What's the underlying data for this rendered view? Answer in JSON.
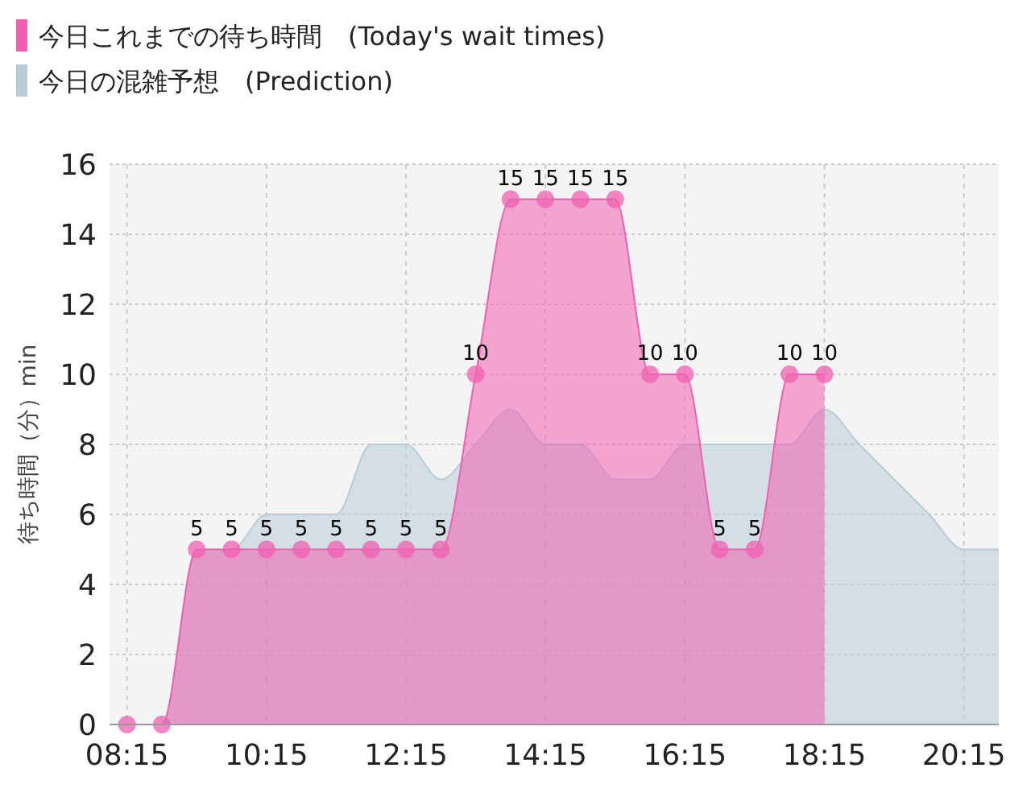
{
  "chart_data": {
    "type": "area",
    "ylabel": "待ち時間（分）min",
    "xlim": [
      8,
      20.75
    ],
    "ylim": [
      0,
      16
    ],
    "xticks": [
      {
        "value": 8.25,
        "label": "08:15"
      },
      {
        "value": 10.25,
        "label": "10:15"
      },
      {
        "value": 12.25,
        "label": "12:15"
      },
      {
        "value": 14.25,
        "label": "14:15"
      },
      {
        "value": 16.25,
        "label": "16:15"
      },
      {
        "value": 18.25,
        "label": "18:15"
      },
      {
        "value": 20.25,
        "label": "20:15"
      }
    ],
    "yticks": [
      0,
      2,
      4,
      6,
      8,
      10,
      12,
      14,
      16
    ],
    "grid": true,
    "legend": "top left",
    "series": [
      {
        "name": "今日の混雑予想　(Prediction)",
        "color": "#b8ccd8",
        "x": [
          8.25,
          8.75,
          9.25,
          9.75,
          10.25,
          10.75,
          11.25,
          11.75,
          12.25,
          12.75,
          13.25,
          13.75,
          14.25,
          14.75,
          15.25,
          15.75,
          16.25,
          16.75,
          17.25,
          17.75,
          18.25,
          18.75,
          19.25,
          19.75,
          20.25,
          20.75
        ],
        "values": [
          0,
          0,
          5,
          5,
          6,
          6,
          6,
          8,
          8,
          7,
          8,
          9,
          8,
          8,
          7,
          7,
          8,
          8,
          8,
          8,
          9,
          8,
          7,
          6,
          5,
          5
        ],
        "marker": "none"
      },
      {
        "name": "今日これまでの待ち時間　(Today's wait times)",
        "color": "#f060b0",
        "x": [
          8.25,
          8.75,
          9.25,
          9.75,
          10.25,
          10.75,
          11.25,
          11.75,
          12.25,
          12.75,
          13.25,
          13.75,
          14.25,
          14.75,
          15.25,
          15.75,
          16.25,
          16.75,
          17.25,
          17.75,
          18.25
        ],
        "values": [
          0,
          0,
          5,
          5,
          5,
          5,
          5,
          5,
          5,
          5,
          10,
          15,
          15,
          15,
          15,
          10,
          10,
          5,
          5,
          10,
          10
        ],
        "marker": "circle",
        "value_labels": [
          null,
          null,
          "5",
          "5",
          "5",
          "5",
          "5",
          "5",
          "5",
          "5",
          "10",
          "15",
          "15",
          "15",
          "15",
          "10",
          "10",
          "5",
          "5",
          "10",
          "10"
        ]
      }
    ]
  }
}
